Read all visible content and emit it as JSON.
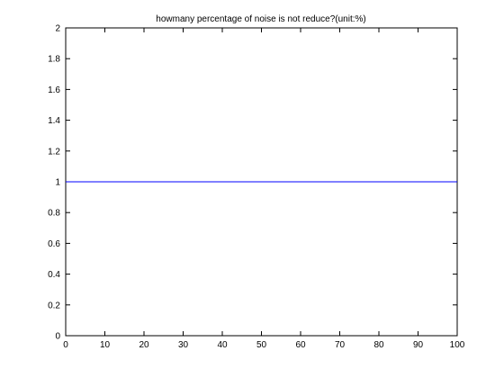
{
  "chart_data": {
    "type": "line",
    "title": "howmany percentage of noise is not reduce?(unit:%)",
    "xlabel": "",
    "ylabel": "",
    "xlim": [
      0,
      100
    ],
    "ylim": [
      0,
      2
    ],
    "x_ticks": [
      0,
      10,
      20,
      30,
      40,
      50,
      60,
      70,
      80,
      90,
      100
    ],
    "x_tick_labels": [
      "0",
      "10",
      "20",
      "30",
      "40",
      "50",
      "60",
      "70",
      "80",
      "90",
      "100"
    ],
    "y_ticks": [
      0,
      0.2,
      0.4,
      0.6,
      0.8,
      1,
      1.2,
      1.4,
      1.6,
      1.8,
      2
    ],
    "y_tick_labels": [
      "0",
      "0.2",
      "0.4",
      "0.6",
      "0.8",
      "1",
      "1.2",
      "1.4",
      "1.6",
      "1.8",
      "2"
    ],
    "grid": false,
    "series": [
      {
        "x": [
          0,
          100
        ],
        "y": [
          1,
          1
        ],
        "color": "#0000ff"
      }
    ]
  }
}
